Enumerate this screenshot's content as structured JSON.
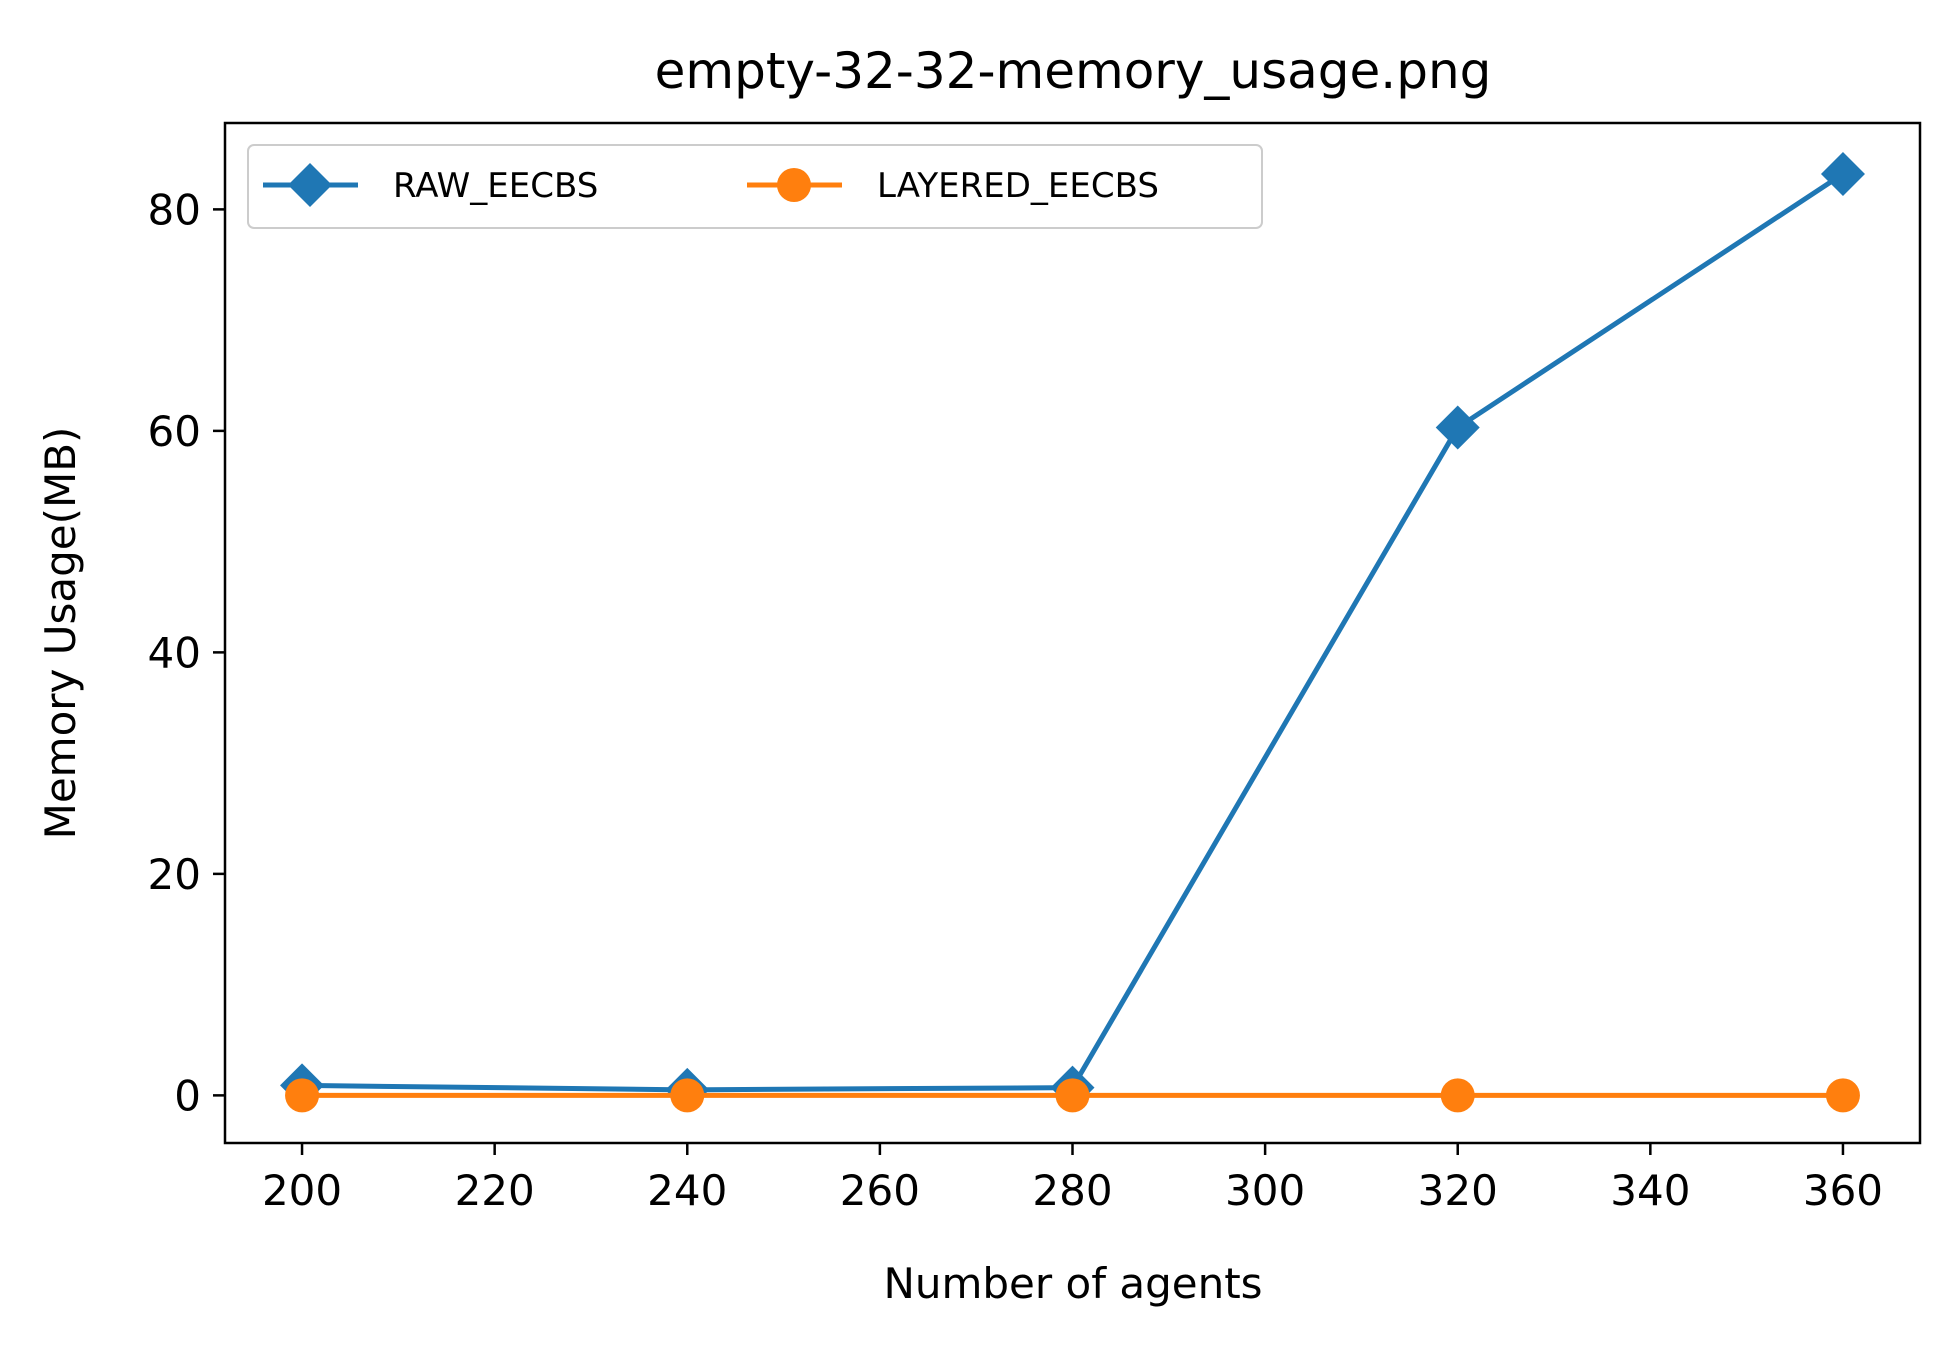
{
  "chart_data": {
    "type": "line",
    "title": "empty-32-32-memory_usage.png",
    "xlabel": "Number of agents",
    "ylabel": "Memory Usage(MB)",
    "x": [
      200,
      240,
      280,
      320,
      360
    ],
    "xlim": [
      192,
      368
    ],
    "ylim": [
      -4.3,
      87.8
    ],
    "xticks": [
      200,
      220,
      240,
      260,
      280,
      300,
      320,
      340,
      360
    ],
    "yticks": [
      0,
      20,
      40,
      60,
      80
    ],
    "grid": false,
    "legend_placement": "top-left",
    "legend_columns": 2,
    "series": [
      {
        "name": "RAW_EECBS",
        "values": [
          0.9,
          0.5,
          0.7,
          60.3,
          83.2
        ],
        "color": "#1f77b4",
        "marker": "diamond"
      },
      {
        "name": "LAYERED_EECBS",
        "values": [
          0.0,
          0.0,
          0.0,
          0.0,
          0.0
        ],
        "color": "#ff7f0e",
        "marker": "circle"
      }
    ]
  }
}
